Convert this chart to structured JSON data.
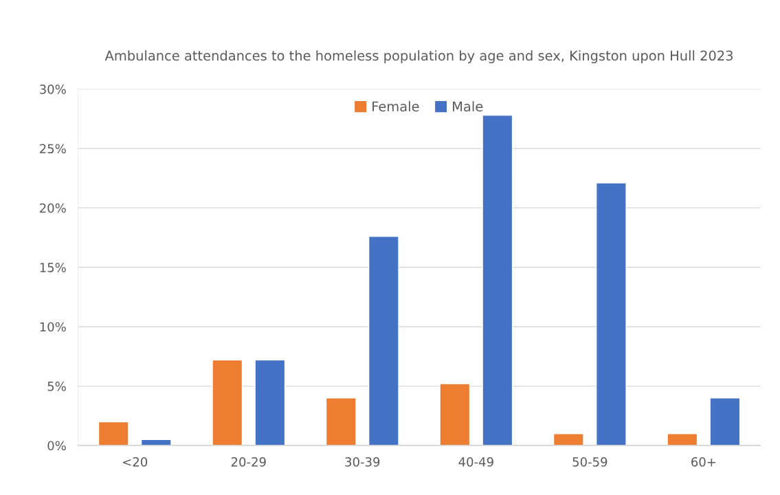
{
  "chart_data": {
    "type": "bar",
    "title": "Ambulance attendances to the homeless population by age and sex, Kingston upon Hull 2023",
    "categories": [
      "<20",
      "20-29",
      "30-39",
      "40-49",
      "50-59",
      "60+"
    ],
    "series": [
      {
        "name": "Female",
        "color": "#ed7d31",
        "values": [
          2.0,
          7.2,
          4.0,
          5.2,
          1.0,
          1.0
        ]
      },
      {
        "name": "Male",
        "color": "#4472c4",
        "values": [
          0.5,
          7.2,
          17.6,
          27.8,
          22.1,
          4.0
        ]
      }
    ],
    "ylim": [
      0,
      30
    ],
    "yticks": [
      {
        "value": 0,
        "label": "0%"
      },
      {
        "value": 5,
        "label": "5%"
      },
      {
        "value": 10,
        "label": "10%"
      },
      {
        "value": 15,
        "label": "15%"
      },
      {
        "value": 20,
        "label": "20%"
      },
      {
        "value": 25,
        "label": "25%"
      },
      {
        "value": 30,
        "label": "30%"
      }
    ],
    "grid": "y",
    "legend": "top"
  }
}
